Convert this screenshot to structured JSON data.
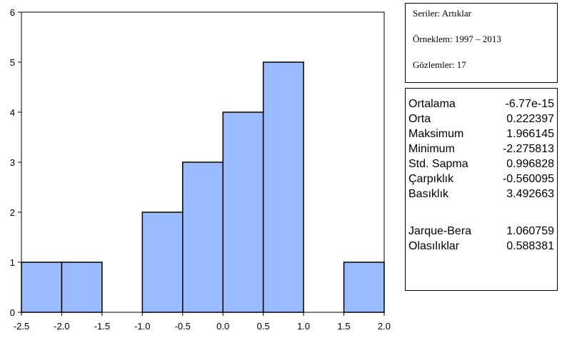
{
  "chart_data": {
    "type": "bar",
    "bins": [
      {
        "from": -2.5,
        "to": -2.0,
        "count": 1
      },
      {
        "from": -2.0,
        "to": -1.5,
        "count": 1
      },
      {
        "from": -1.5,
        "to": -1.0,
        "count": 0
      },
      {
        "from": -1.0,
        "to": -0.5,
        "count": 2
      },
      {
        "from": -0.5,
        "to": 0.0,
        "count": 3
      },
      {
        "from": 0.0,
        "to": 0.5,
        "count": 4
      },
      {
        "from": 0.5,
        "to": 1.0,
        "count": 5
      },
      {
        "from": 1.0,
        "to": 1.5,
        "count": 0
      },
      {
        "from": 1.5,
        "to": 2.0,
        "count": 1
      }
    ],
    "xticks": [
      "-2.5",
      "-2.0",
      "-1.5",
      "-1.0",
      "-0.5",
      "0.0",
      "0.5",
      "1.0",
      "1.5",
      "2.0"
    ],
    "yticks": [
      "0",
      "1",
      "2",
      "3",
      "4",
      "5",
      "6"
    ],
    "xlim": [
      -2.5,
      2.0
    ],
    "ylim": [
      0,
      6
    ],
    "bar_color": "#99bbff",
    "title": "",
    "xlabel": "",
    "ylabel": "",
    "grid": false
  },
  "info": {
    "series": "Seriler: Artıklar",
    "sample": "Örneklem: 1997 – 2013",
    "observations": "Gözlemler: 17"
  },
  "stats": [
    {
      "label": "Ortalama",
      "value": "-6.77e-15"
    },
    {
      "label": "Orta",
      "value": "0.222397"
    },
    {
      "label": "Maksimum",
      "value": "1.966145"
    },
    {
      "label": "Minimum",
      "value": "-2.275813"
    },
    {
      "label": "Std. Sapma",
      "value": "0.996828"
    },
    {
      "label": "Çarpıklık",
      "value": "-0.560095"
    },
    {
      "label": "Basıklık",
      "value": "3.492663"
    },
    {
      "label": "Jarque-Bera",
      "value": "1.060759"
    },
    {
      "label": "Olasılıklar",
      "value": "0.588381"
    }
  ]
}
